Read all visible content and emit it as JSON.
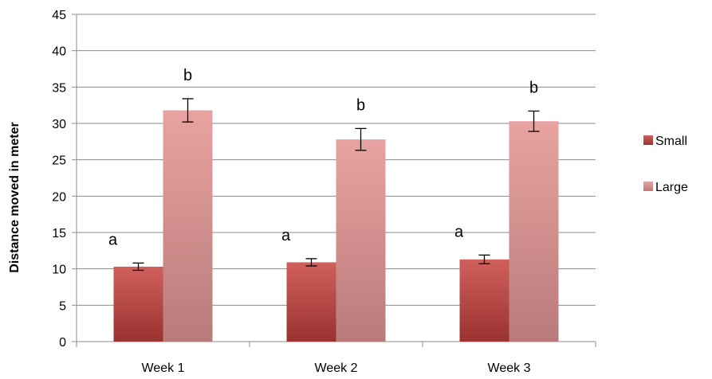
{
  "chart_data": {
    "type": "bar",
    "title": "",
    "xlabel": "",
    "ylabel": "Distance moved in meter",
    "categories": [
      "Week 1",
      "Week 2",
      "Week 3"
    ],
    "ylim": [
      0,
      45
    ],
    "yticks": [
      0,
      5,
      10,
      15,
      20,
      25,
      30,
      35,
      40,
      45
    ],
    "grid": true,
    "legend_position": "right",
    "series": [
      {
        "name": "Small",
        "color": "#c0504d",
        "values": [
          10.3,
          10.9,
          11.3
        ],
        "errors": [
          0.5,
          0.5,
          0.6
        ],
        "annotations": [
          "a",
          "a",
          "a"
        ]
      },
      {
        "name": "Large",
        "color": "#e09a99",
        "values": [
          31.8,
          27.8,
          30.3
        ],
        "errors": [
          1.6,
          1.5,
          1.4
        ],
        "annotations": [
          "b",
          "b",
          "b"
        ]
      }
    ]
  }
}
